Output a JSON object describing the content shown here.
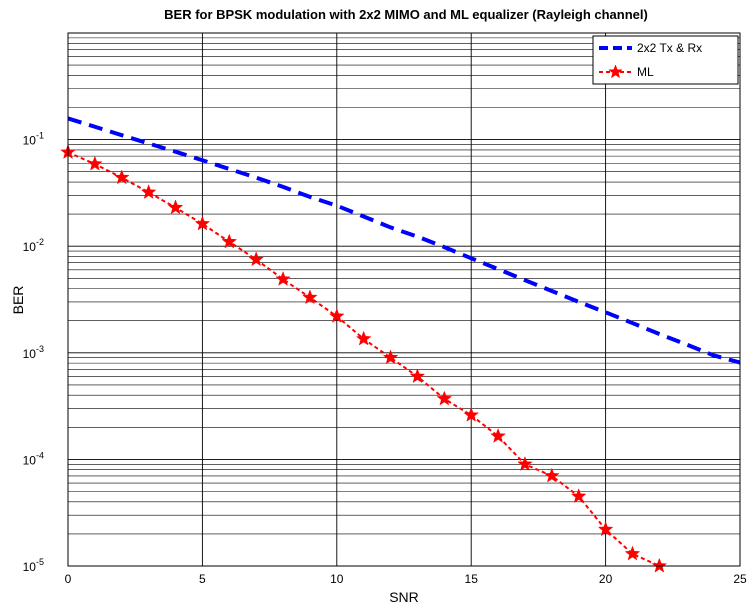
{
  "chart_data": {
    "type": "line",
    "title": "BER for BPSK modulation with 2x2 MIMO and ML equalizer (Rayleigh channel)",
    "xlabel": "SNR",
    "ylabel": "BER",
    "xlim": [
      0,
      25
    ],
    "ylim": [
      1e-05,
      1
    ],
    "yscale": "log",
    "xticks": [
      "0",
      "5",
      "10",
      "15",
      "20",
      "25"
    ],
    "yticks": [
      {
        "base": "10",
        "exp": "-1"
      },
      {
        "base": "10",
        "exp": "-2"
      },
      {
        "base": "10",
        "exp": "-3"
      },
      {
        "base": "10",
        "exp": "-4"
      },
      {
        "base": "10",
        "exp": "-5"
      }
    ],
    "grid": "on",
    "legend_position": "top-right",
    "series": [
      {
        "name": "2x2 Tx & Rx",
        "color": "#0000ff",
        "style": "dashed",
        "marker": "none",
        "x": [
          0,
          1,
          2,
          3,
          4,
          5,
          6,
          7,
          8,
          9,
          10,
          11,
          12,
          13,
          14,
          15,
          16,
          17,
          18,
          19,
          20,
          21,
          22,
          23,
          24,
          25
        ],
        "y": [
          0.158,
          0.132,
          0.11,
          0.092,
          0.077,
          0.064,
          0.053,
          0.044,
          0.036,
          0.029,
          0.024,
          0.019,
          0.015,
          0.0123,
          0.0098,
          0.0077,
          0.0061,
          0.0048,
          0.0038,
          0.003,
          0.0024,
          0.0019,
          0.0015,
          0.0012,
          0.00095,
          0.00081
        ]
      },
      {
        "name": "ML",
        "color": "#ff0000",
        "style": "dashed",
        "marker": "star",
        "x": [
          0,
          1,
          2,
          3,
          4,
          5,
          6,
          7,
          8,
          9,
          10,
          11,
          12,
          13,
          14,
          15,
          16,
          17,
          18,
          19,
          20,
          21,
          22
        ],
        "y": [
          0.076,
          0.059,
          0.044,
          0.032,
          0.023,
          0.0162,
          0.011,
          0.0075,
          0.0049,
          0.0033,
          0.0022,
          0.00135,
          0.0009,
          0.0006,
          0.00037,
          0.00026,
          0.000165,
          9e-05,
          7e-05,
          4.5e-05,
          2.2e-05,
          1.3e-05,
          1e-05
        ]
      }
    ]
  }
}
